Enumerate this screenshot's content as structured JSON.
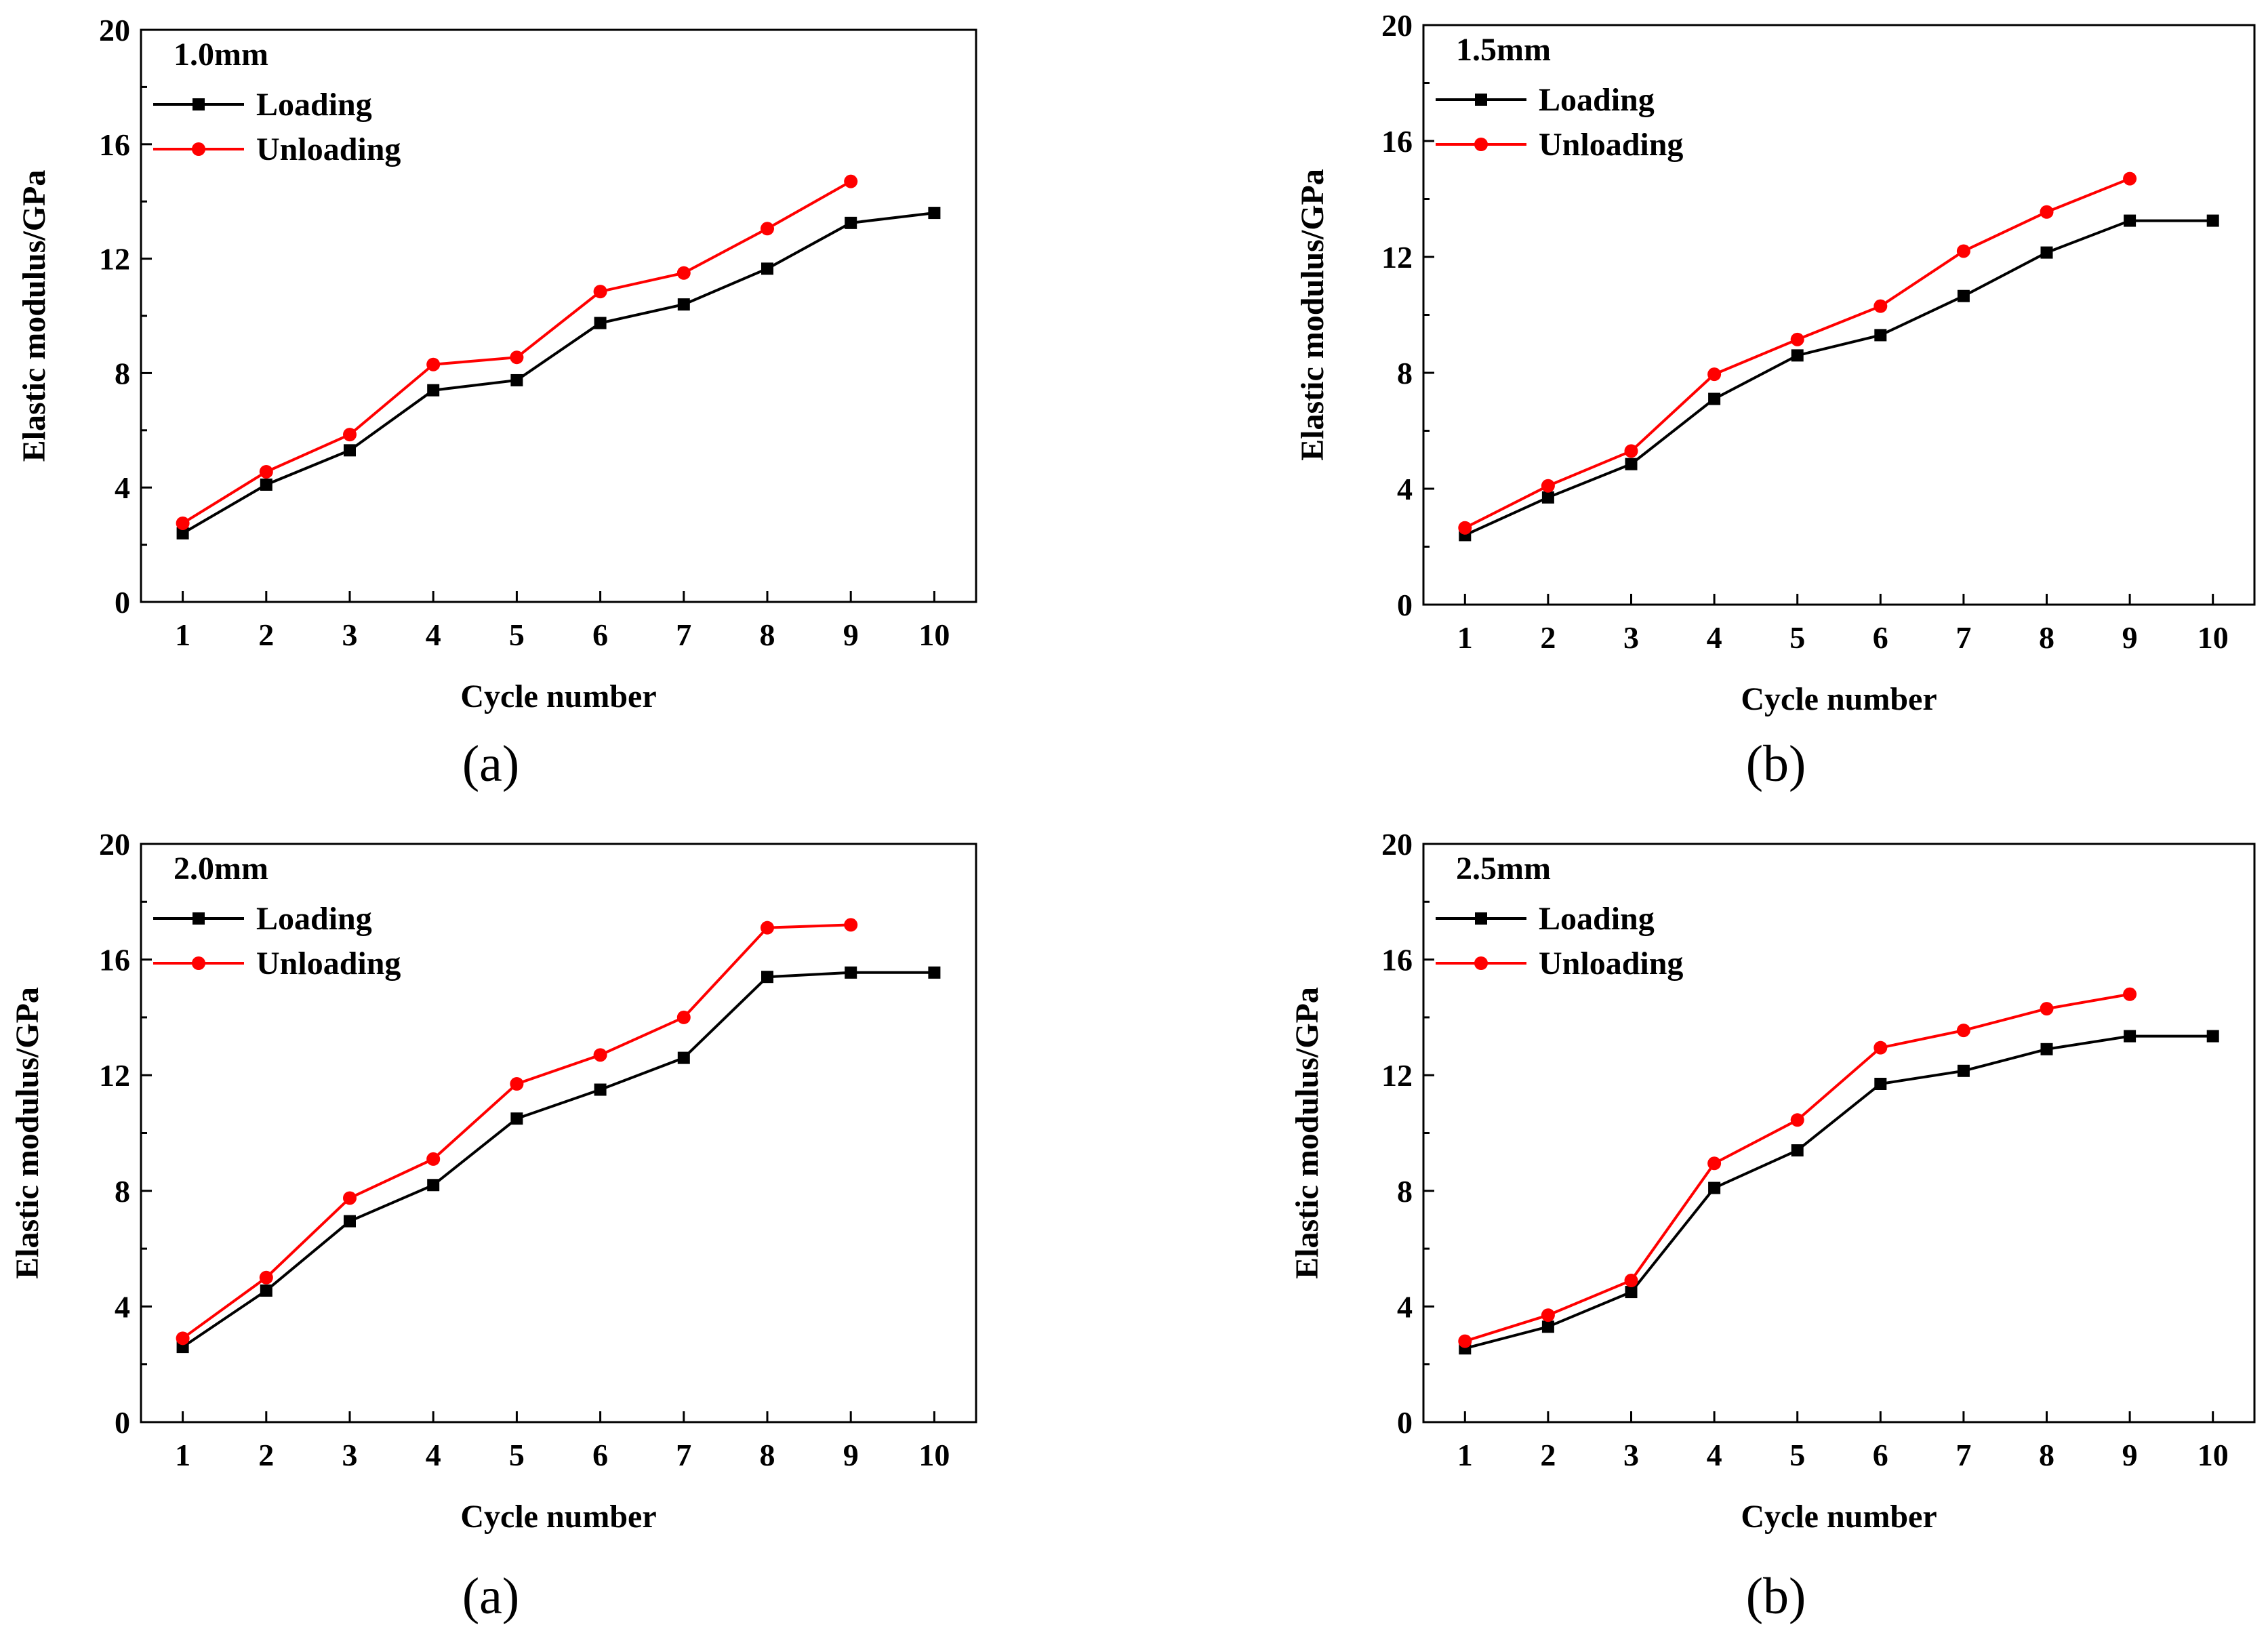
{
  "chart_data": [
    {
      "type": "line",
      "annotation": "1.0mm",
      "caption": "(a)",
      "xlabel": "Cycle number",
      "ylabel": "Elastic modulus/GPa",
      "xlim": [
        0.5,
        10.5
      ],
      "ylim": [
        0,
        20
      ],
      "x_ticks": [
        1,
        2,
        3,
        4,
        5,
        6,
        7,
        8,
        9,
        10
      ],
      "y_ticks": [
        0,
        4,
        8,
        12,
        16,
        20
      ],
      "legend_position": "top-left",
      "series": [
        {
          "name": "Loading",
          "color": "#000000",
          "marker": "square",
          "x": [
            1,
            2,
            3,
            4,
            5,
            6,
            7,
            8,
            9,
            10
          ],
          "values": [
            2.4,
            4.1,
            5.3,
            7.4,
            7.75,
            9.75,
            10.4,
            11.65,
            13.25,
            13.6
          ]
        },
        {
          "name": "Unloading",
          "color": "#ff0000",
          "marker": "circle",
          "x": [
            1,
            2,
            3,
            4,
            5,
            6,
            7,
            8,
            9
          ],
          "values": [
            2.75,
            4.55,
            5.85,
            8.3,
            8.55,
            10.85,
            11.5,
            13.05,
            14.7
          ]
        }
      ]
    },
    {
      "type": "line",
      "annotation": "1.5mm",
      "caption": "(b)",
      "xlabel": "Cycle number",
      "ylabel": "Elastic modulus/GPa",
      "xlim": [
        0.5,
        10.5
      ],
      "ylim": [
        0,
        20
      ],
      "x_ticks": [
        1,
        2,
        3,
        4,
        5,
        6,
        7,
        8,
        9,
        10
      ],
      "y_ticks": [
        0,
        4,
        8,
        12,
        16,
        20
      ],
      "legend_position": "top-left",
      "series": [
        {
          "name": "Loading",
          "color": "#000000",
          "marker": "square",
          "x": [
            1,
            2,
            3,
            4,
            5,
            6,
            7,
            8,
            9,
            10
          ],
          "values": [
            2.4,
            3.7,
            4.85,
            7.1,
            8.6,
            9.3,
            10.65,
            12.15,
            13.25,
            13.25
          ]
        },
        {
          "name": "Unloading",
          "color": "#ff0000",
          "marker": "circle",
          "x": [
            1,
            2,
            3,
            4,
            5,
            6,
            7,
            8,
            9
          ],
          "values": [
            2.65,
            4.1,
            5.3,
            7.95,
            9.15,
            10.3,
            12.2,
            13.55,
            14.7
          ]
        }
      ]
    },
    {
      "type": "line",
      "annotation": "2.0mm",
      "caption": "(a)",
      "xlabel": "Cycle number",
      "ylabel": "Elastic modulus/GPa",
      "xlim": [
        0.5,
        10.5
      ],
      "ylim": [
        0,
        20
      ],
      "x_ticks": [
        1,
        2,
        3,
        4,
        5,
        6,
        7,
        8,
        9,
        10
      ],
      "y_ticks": [
        0,
        4,
        8,
        12,
        16,
        20
      ],
      "legend_position": "top-left",
      "series": [
        {
          "name": "Loading",
          "color": "#000000",
          "marker": "square",
          "x": [
            1,
            2,
            3,
            4,
            5,
            6,
            7,
            8,
            9,
            10
          ],
          "values": [
            2.6,
            4.55,
            6.95,
            8.2,
            10.5,
            11.5,
            12.6,
            15.4,
            15.55,
            15.55
          ]
        },
        {
          "name": "Unloading",
          "color": "#ff0000",
          "marker": "circle",
          "x": [
            1,
            2,
            3,
            4,
            5,
            6,
            7,
            8,
            9
          ],
          "values": [
            2.9,
            5.0,
            7.75,
            9.1,
            11.7,
            12.7,
            14.0,
            17.1,
            17.2
          ]
        }
      ]
    },
    {
      "type": "line",
      "annotation": "2.5mm",
      "caption": "(b)",
      "xlabel": "Cycle number",
      "ylabel": "Elastic modulus/GPa",
      "xlim": [
        0.5,
        10.5
      ],
      "ylim": [
        0,
        20
      ],
      "x_ticks": [
        1,
        2,
        3,
        4,
        5,
        6,
        7,
        8,
        9,
        10
      ],
      "y_ticks": [
        0,
        4,
        8,
        12,
        16,
        20
      ],
      "legend_position": "top-left",
      "series": [
        {
          "name": "Loading",
          "color": "#000000",
          "marker": "square",
          "x": [
            1,
            2,
            3,
            4,
            5,
            6,
            7,
            8,
            9,
            10
          ],
          "values": [
            2.55,
            3.3,
            4.5,
            8.1,
            9.4,
            11.7,
            12.15,
            12.9,
            13.35,
            13.35
          ]
        },
        {
          "name": "Unloading",
          "color": "#ff0000",
          "marker": "circle",
          "x": [
            1,
            2,
            3,
            4,
            5,
            6,
            7,
            8,
            9
          ],
          "values": [
            2.8,
            3.7,
            4.9,
            8.95,
            10.45,
            12.95,
            13.55,
            14.3,
            14.8
          ]
        }
      ]
    }
  ]
}
